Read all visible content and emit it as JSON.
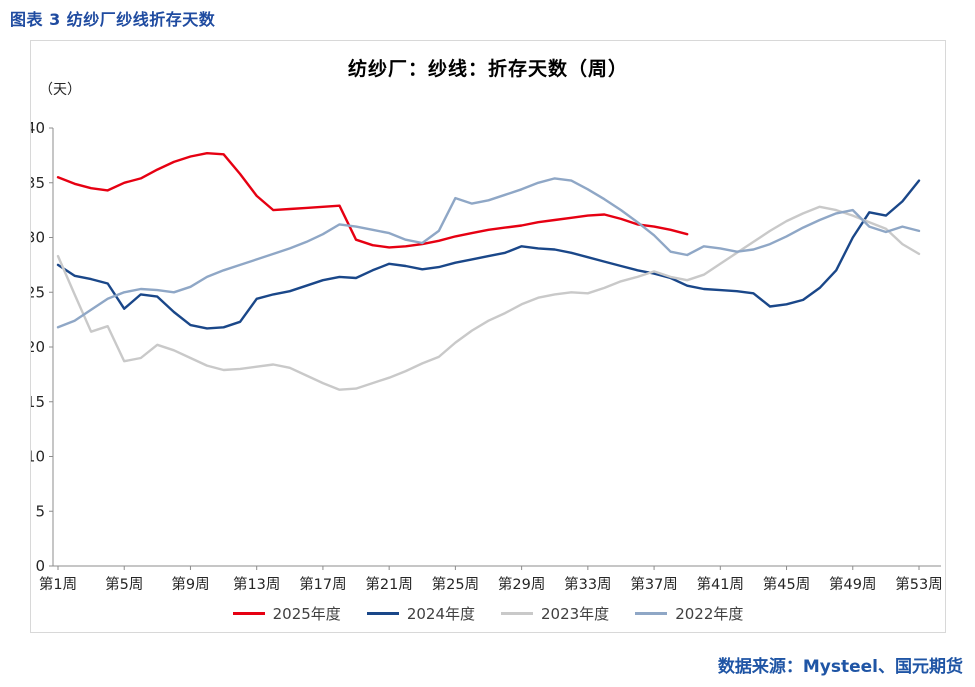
{
  "figure": {
    "caption": "图表 3 纺纱厂纱线折存天数",
    "source": "数据来源：Mysteel、国元期货"
  },
  "chart_data": {
    "type": "line",
    "title": "纺纱厂：纱线：折存天数（周）",
    "ylabel": "（天）",
    "ylim": [
      0,
      40
    ],
    "ytick_step": 5,
    "grid": false,
    "legend_position": "bottom",
    "x_unit": "week",
    "x_range": [
      1,
      53
    ],
    "xtick_positions": [
      1,
      5,
      9,
      13,
      17,
      21,
      25,
      29,
      33,
      37,
      41,
      45,
      49,
      53
    ],
    "xtick_labels": [
      "第1周",
      "第5周",
      "第9周",
      "第13周",
      "第17周",
      "第21周",
      "第25周",
      "第29周",
      "第33周",
      "第37周",
      "第41周",
      "第45周",
      "第49周",
      "第53周"
    ],
    "series": [
      {
        "name": "2025年度",
        "color": "#e60012",
        "start_week": 1,
        "values": [
          35.5,
          34.9,
          34.5,
          34.3,
          35.0,
          35.4,
          36.2,
          36.9,
          37.4,
          37.7,
          37.6,
          35.8,
          33.8,
          32.5,
          32.6,
          32.7,
          32.8,
          32.9,
          29.8,
          29.3,
          29.1,
          29.2,
          29.4,
          29.7,
          30.1,
          30.4,
          30.7,
          30.9,
          31.1,
          31.4,
          31.6,
          31.8,
          32.0,
          32.1,
          31.7,
          31.2,
          31.0,
          30.7,
          30.3
        ]
      },
      {
        "name": "2024年度",
        "color": "#1a4789",
        "start_week": 1,
        "values": [
          27.5,
          26.5,
          26.2,
          25.8,
          23.5,
          24.8,
          24.6,
          23.2,
          22.0,
          21.7,
          21.8,
          22.3,
          24.4,
          24.8,
          25.1,
          25.6,
          26.1,
          26.4,
          26.3,
          27.0,
          27.6,
          27.4,
          27.1,
          27.3,
          27.7,
          28.0,
          28.3,
          28.6,
          29.2,
          29.0,
          28.9,
          28.6,
          28.2,
          27.8,
          27.4,
          27.0,
          26.7,
          26.3,
          25.6,
          25.3,
          25.2,
          25.1,
          24.9,
          23.7,
          23.9,
          24.3,
          25.4,
          27.0,
          30.0,
          32.3,
          32.0,
          33.3,
          35.2
        ]
      },
      {
        "name": "2023年度",
        "color": "#c9c9c9",
        "start_week": 1,
        "values": [
          28.3,
          24.8,
          21.4,
          21.9,
          18.7,
          19.0,
          20.2,
          19.7,
          19.0,
          18.3,
          17.9,
          18.0,
          18.2,
          18.4,
          18.1,
          17.4,
          16.7,
          16.1,
          16.2,
          16.7,
          17.2,
          17.8,
          18.5,
          19.1,
          20.4,
          21.5,
          22.4,
          23.1,
          23.9,
          24.5,
          24.8,
          25.0,
          24.9,
          25.4,
          26.0,
          26.4,
          26.9,
          26.4,
          26.1,
          26.6,
          27.6,
          28.6,
          29.6,
          30.6,
          31.5,
          32.2,
          32.8,
          32.5,
          32.0,
          31.4,
          30.8,
          29.4,
          28.5
        ]
      },
      {
        "name": "2022年度",
        "color": "#8fa7c6",
        "start_week": 1,
        "values": [
          21.8,
          22.4,
          23.4,
          24.4,
          25.0,
          25.3,
          25.2,
          25.0,
          25.5,
          26.4,
          27.0,
          27.5,
          28.0,
          28.5,
          29.0,
          29.6,
          30.3,
          31.2,
          31.0,
          30.7,
          30.4,
          29.8,
          29.5,
          30.6,
          33.6,
          33.1,
          33.4,
          33.9,
          34.4,
          35.0,
          35.4,
          35.2,
          34.4,
          33.5,
          32.5,
          31.4,
          30.2,
          28.7,
          28.4,
          29.2,
          29.0,
          28.7,
          28.9,
          29.4,
          30.1,
          30.9,
          31.6,
          32.2,
          32.5,
          31.0,
          30.5,
          31.0,
          30.6
        ]
      }
    ]
  }
}
